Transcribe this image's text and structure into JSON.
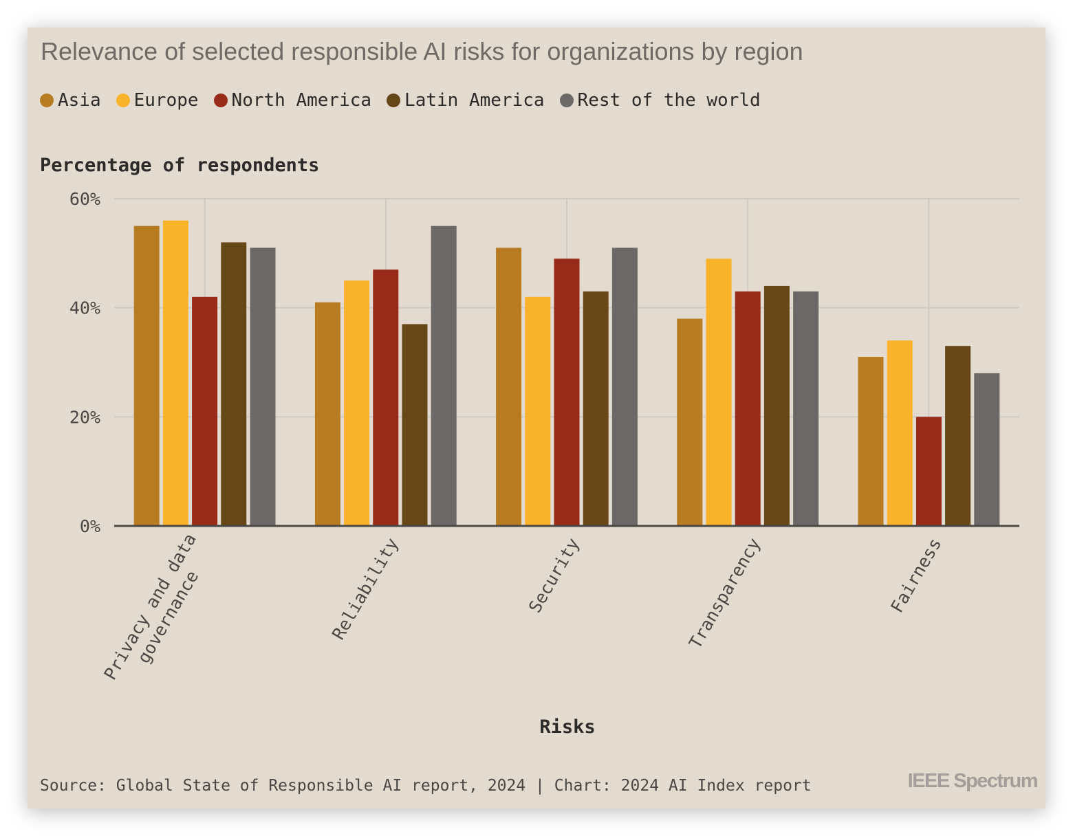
{
  "title": "Relevance of selected responsible AI risks for organizations by region",
  "legend": [
    {
      "label": "Asia",
      "color": "#b77b21"
    },
    {
      "label": "Europe",
      "color": "#f9b32a"
    },
    {
      "label": "North America",
      "color": "#982a1a"
    },
    {
      "label": "Latin America",
      "color": "#664718"
    },
    {
      "label": "Rest of the world",
      "color": "#6b6867"
    }
  ],
  "footer": {
    "source": "Source: Global State of Responsible AI report, 2024 | Chart: 2024 AI Index report",
    "logo": "IEEE Spectrum"
  },
  "chart_data": {
    "type": "bar",
    "title": "Relevance of selected responsible AI risks for organizations by region",
    "xlabel": "Risks",
    "ylabel": "Percentage of respondents",
    "categories": [
      "Privacy and data governance",
      "Reliability",
      "Security",
      "Transparency",
      "Fairness"
    ],
    "category_lines": [
      [
        "Privacy and data",
        "governance"
      ],
      [
        "Reliability"
      ],
      [
        "Security"
      ],
      [
        "Transparency"
      ],
      [
        "Fairness"
      ]
    ],
    "series": [
      {
        "name": "Asia",
        "color": "#b77b21",
        "values": [
          55,
          41,
          51,
          38,
          31
        ]
      },
      {
        "name": "Europe",
        "color": "#f9b32a",
        "values": [
          56,
          45,
          42,
          49,
          34
        ]
      },
      {
        "name": "North America",
        "color": "#982a1a",
        "values": [
          42,
          47,
          49,
          43,
          20
        ]
      },
      {
        "name": "Latin America",
        "color": "#664718",
        "values": [
          52,
          37,
          43,
          44,
          33
        ]
      },
      {
        "name": "Rest of the world",
        "color": "#6b6867",
        "values": [
          51,
          55,
          51,
          43,
          28
        ]
      }
    ],
    "yticks": [
      0,
      20,
      40,
      60
    ],
    "ytick_labels": [
      "0%",
      "20%",
      "40%",
      "60%"
    ],
    "ylim": [
      0,
      60
    ],
    "grid": true,
    "legend_position": "top-left"
  }
}
